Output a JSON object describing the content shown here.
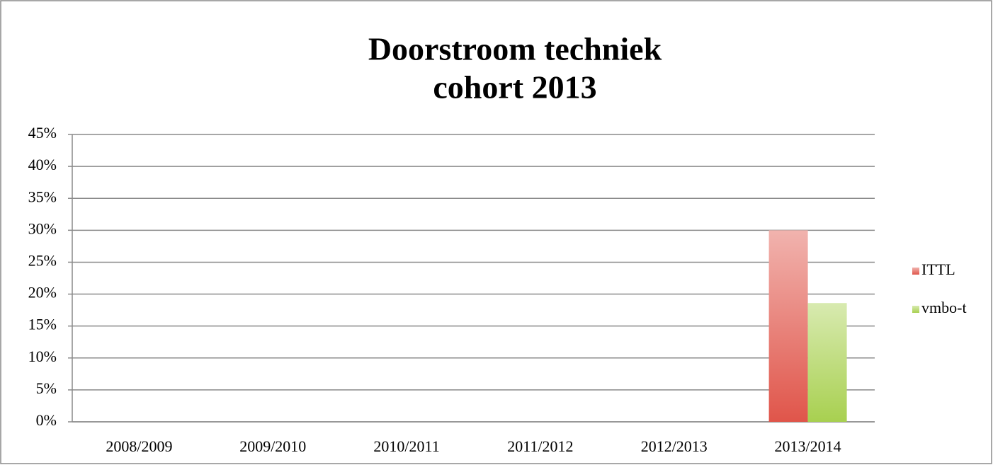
{
  "chart_data": {
    "type": "bar",
    "title": [
      "Doorstroom techniek",
      "cohort 2013"
    ],
    "categories": [
      "2008/2009",
      "2009/2010",
      "2010/2011",
      "2011/2012",
      "2012/2013",
      "2013/2014"
    ],
    "series": [
      {
        "name": "ITTL",
        "color": "#e0554a",
        "values": [
          null,
          null,
          null,
          null,
          null,
          30
        ]
      },
      {
        "name": "vmbo-t",
        "color": "#a8d050",
        "values": [
          null,
          null,
          null,
          null,
          null,
          18.6
        ]
      }
    ],
    "ylim": [
      0,
      45
    ],
    "yticks": [
      {
        "value": 0,
        "label": "0%"
      },
      {
        "value": 5,
        "label": "5%"
      },
      {
        "value": 10,
        "label": "10%"
      },
      {
        "value": 15,
        "label": "15%"
      },
      {
        "value": 20,
        "label": "20%"
      },
      {
        "value": 25,
        "label": "25%"
      },
      {
        "value": 30,
        "label": "30%"
      },
      {
        "value": 35,
        "label": "35%"
      },
      {
        "value": 40,
        "label": "40%"
      },
      {
        "value": 45,
        "label": "45%"
      }
    ],
    "grid": true,
    "legend": "right"
  }
}
